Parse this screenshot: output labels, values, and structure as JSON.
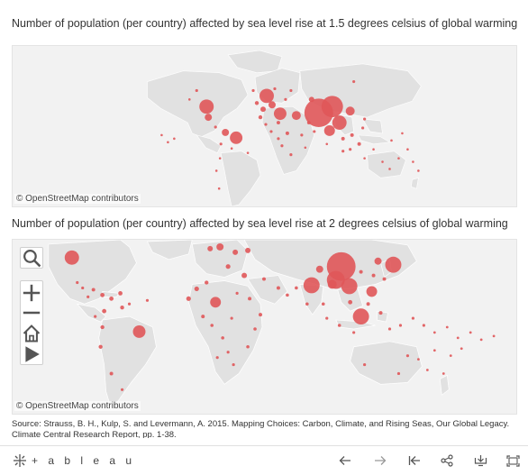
{
  "maps": [
    {
      "title": "Number of population (per country) affected by sea level rise at 1.5 degrees celsius of global warming",
      "attribution": "© OpenStreetMap contributors"
    },
    {
      "title": "Number of population (per country) affected by sea level rise at 2 degrees celsius of global warming",
      "attribution": "© OpenStreetMap contributors"
    }
  ],
  "source": "Source: Strauss, B. H., Kulp, S. and Levermann, A. 2015. Mapping Choices: Carbon, Climate, and Rising Seas, Our Global Legacy. Climate Central Research Report, pp. 1-38.",
  "brand": "+ a b l e a u",
  "colors": {
    "marker": "#e05759",
    "land": "#e1e1e1",
    "sea": "#f2f2f2",
    "border": "#ffffff"
  },
  "map_controls": [
    "search-icon",
    "zoom-in-icon",
    "zoom-out-icon",
    "home-icon",
    "play-icon"
  ],
  "toolbar_icons": [
    "undo-icon",
    "redo-icon",
    "revert-icon",
    "share-icon",
    "download-icon",
    "fullscreen-icon"
  ]
}
